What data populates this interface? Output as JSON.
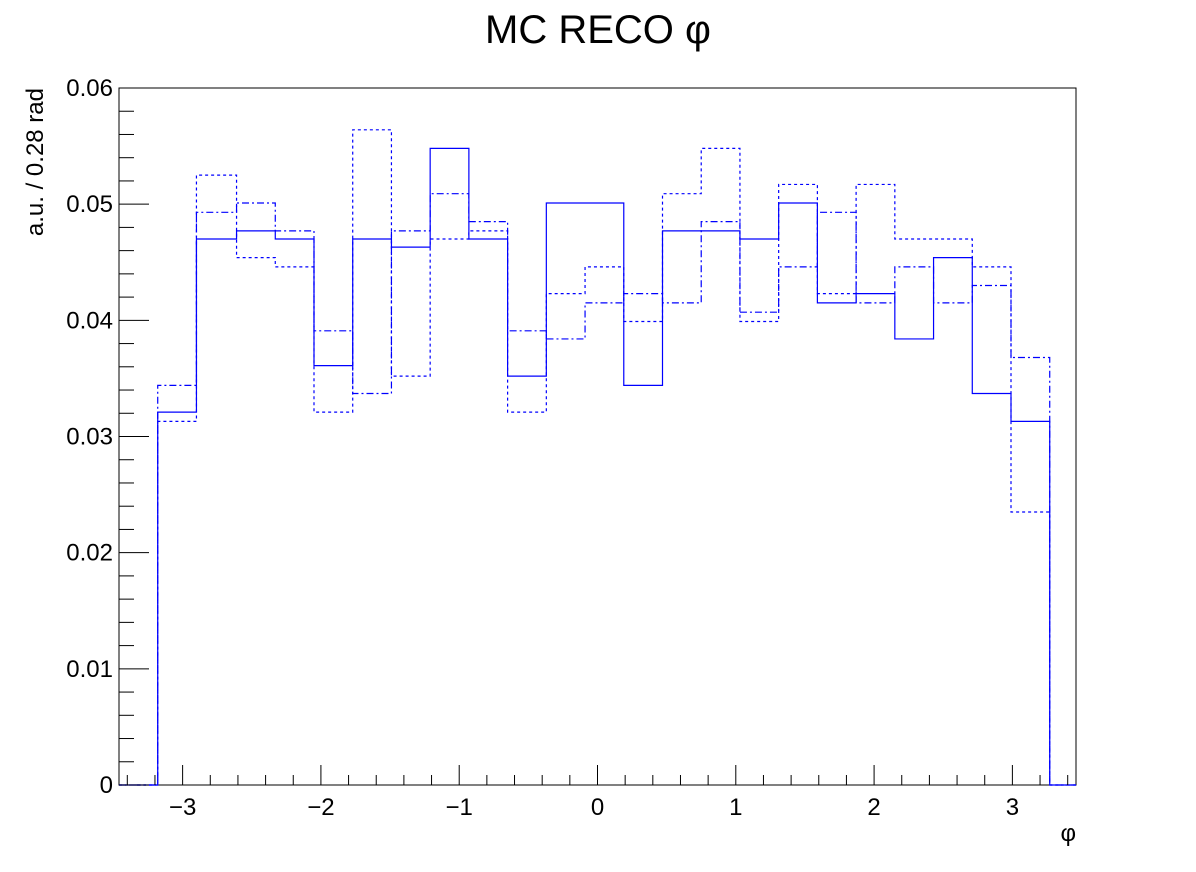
{
  "chart_data": {
    "type": "histogram",
    "title": "MC RECO φ",
    "xlabel": "φ",
    "ylabel": "a.u. / 0.28 rad",
    "xlim": [
      -3.46,
      3.46
    ],
    "ylim": [
      0,
      0.06
    ],
    "x_ticks": [
      -3,
      -2,
      -1,
      0,
      1,
      2,
      3
    ],
    "x_tick_labels": [
      "−3",
      "−2",
      "−1",
      "0",
      "1",
      "2",
      "3"
    ],
    "y_ticks": [
      0,
      0.01,
      0.02,
      0.03,
      0.04,
      0.05,
      0.06
    ],
    "y_tick_labels": [
      "0",
      "0.01",
      "0.02",
      "0.03",
      "0.04",
      "0.05",
      "0.06"
    ],
    "color": "#0000ff",
    "grid": false,
    "legend": "none",
    "bin_edges": [
      -3.46,
      -3.18,
      -2.9,
      -2.61,
      -2.33,
      -2.05,
      -1.77,
      -1.49,
      -1.21,
      -0.93,
      -0.65,
      -0.37,
      -0.09,
      0.19,
      0.47,
      0.75,
      1.03,
      1.31,
      1.59,
      1.87,
      2.15,
      2.43,
      2.71,
      2.99,
      3.27,
      3.46
    ],
    "series": [
      {
        "style": "solid",
        "values": [
          0,
          0.0321,
          0.047,
          0.0477,
          0.047,
          0.0361,
          0.047,
          0.0463,
          0.0548,
          0.047,
          0.0352,
          0.0501,
          0.0501,
          0.0344,
          0.0477,
          0.0477,
          0.047,
          0.0501,
          0.0415,
          0.0423,
          0.0384,
          0.0454,
          0.0337,
          0.0313,
          0
        ]
      },
      {
        "style": "dotted",
        "values": [
          0,
          0.0313,
          0.0525,
          0.0454,
          0.0446,
          0.0321,
          0.0564,
          0.0352,
          0.047,
          0.0477,
          0.0321,
          0.0423,
          0.0446,
          0.0399,
          0.0509,
          0.0548,
          0.0399,
          0.0517,
          0.0423,
          0.0517,
          0.047,
          0.047,
          0.0446,
          0.0235,
          0
        ]
      },
      {
        "style": "dashdot",
        "values": [
          0,
          0.0344,
          0.0493,
          0.0501,
          0.0477,
          0.0391,
          0.0337,
          0.0477,
          0.0509,
          0.0485,
          0.0391,
          0.0384,
          0.0415,
          0.0423,
          0.0415,
          0.0485,
          0.0407,
          0.0446,
          0.0493,
          0.0415,
          0.0446,
          0.0415,
          0.043,
          0.0368,
          0
        ]
      }
    ]
  }
}
